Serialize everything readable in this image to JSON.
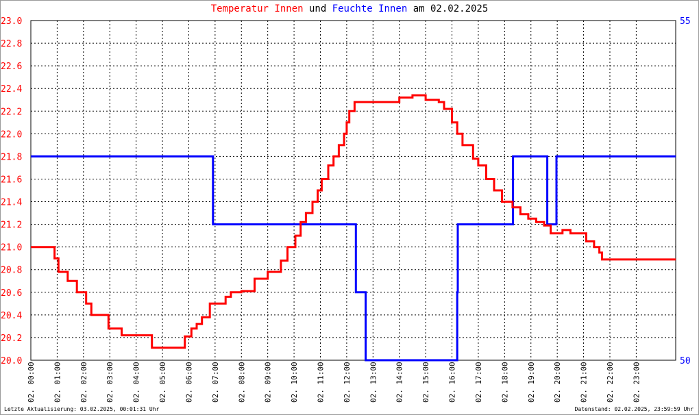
{
  "title": {
    "part1": "Temperatur Innen",
    "part2": " und ",
    "part3": "Feuchte Innen",
    "part4": " am 02.02.2025"
  },
  "footer": {
    "left": "Letzte Aktualisierung: 03.02.2025, 00:01:31 Uhr",
    "right": "Datenstand: 02.02.2025, 23:59:59 Uhr"
  },
  "colors": {
    "temperature": "#ff0000",
    "humidity": "#0000ff",
    "grid": "#000000"
  },
  "chart_data": {
    "type": "line",
    "title": "Temperatur Innen und Feuchte Innen am 02.02.2025",
    "xlim": [
      0,
      24.5
    ],
    "x_tick_labels": [
      "02. 00:00",
      "02. 01:00",
      "02. 02:00",
      "02. 03:00",
      "02. 04:00",
      "02. 05:00",
      "02. 06:00",
      "02. 07:00",
      "02. 08:00",
      "02. 09:00",
      "02. 10:00",
      "02. 11:00",
      "02. 12:00",
      "02. 13:00",
      "02. 14:00",
      "02. 15:00",
      "02. 16:00",
      "02. 17:00",
      "02. 18:00",
      "02. 19:00",
      "02. 20:00",
      "02. 21:00",
      "02. 22:00",
      "02. 23:00"
    ],
    "y_left": {
      "range": [
        20.0,
        23.0
      ],
      "ticks": [
        "20.0",
        "20.2",
        "20.4",
        "20.6",
        "20.8",
        "21.0",
        "21.2",
        "21.4",
        "21.6",
        "21.8",
        "22.0",
        "22.2",
        "22.4",
        "22.6",
        "22.8",
        "23.0"
      ]
    },
    "y_right": {
      "range": [
        50,
        55
      ],
      "ticks": [
        "50",
        "55"
      ]
    },
    "grid": true,
    "series": [
      {
        "name": "Temperatur Innen",
        "axis": "left",
        "x": [
          0.0,
          0.9,
          1.05,
          1.4,
          1.75,
          2.1,
          2.3,
          2.95,
          3.45,
          3.6,
          4.6,
          4.8,
          5.85,
          6.1,
          6.3,
          6.5,
          6.8,
          7.4,
          7.6,
          8.0,
          8.5,
          9.0,
          9.5,
          9.75,
          10.05,
          10.25,
          10.45,
          10.7,
          10.9,
          11.05,
          11.3,
          11.5,
          11.7,
          11.9,
          12.0,
          12.1,
          12.3,
          12.5,
          13.0,
          13.5,
          14.0,
          14.5,
          15.0,
          15.5,
          15.7,
          16.0,
          16.2,
          16.4,
          16.8,
          17.0,
          17.3,
          17.6,
          17.9,
          18.3,
          18.6,
          18.9,
          19.2,
          19.5,
          19.75,
          20.0,
          20.2,
          20.5,
          20.9,
          21.1,
          21.4,
          21.6,
          21.7,
          22.5,
          23.0,
          23.5,
          24.5
        ],
        "y": [
          21.0,
          20.9,
          20.78,
          20.7,
          20.6,
          20.5,
          20.4,
          20.28,
          20.22,
          20.22,
          20.11,
          20.11,
          20.21,
          20.28,
          20.32,
          20.38,
          20.5,
          20.56,
          20.6,
          20.61,
          20.72,
          20.78,
          20.88,
          21.0,
          21.1,
          21.22,
          21.3,
          21.4,
          21.5,
          21.6,
          21.72,
          21.8,
          21.9,
          22.0,
          22.1,
          22.2,
          22.28,
          22.28,
          22.28,
          22.28,
          22.32,
          22.34,
          22.3,
          22.28,
          22.22,
          22.1,
          22.0,
          21.9,
          21.78,
          21.72,
          21.6,
          21.5,
          21.4,
          21.35,
          21.29,
          21.25,
          21.22,
          21.19,
          21.12,
          21.12,
          21.15,
          21.12,
          21.12,
          21.05,
          21.0,
          20.95,
          20.89,
          20.89,
          20.89,
          20.89,
          20.89
        ]
      },
      {
        "name": "Feuchte Innen",
        "axis": "right",
        "x": [
          0.0,
          6.9,
          6.92,
          12.3,
          12.35,
          12.7,
          12.72,
          16.2,
          16.22,
          18.3,
          18.32,
          19.6,
          19.62,
          19.75,
          19.8,
          19.95,
          19.97,
          24.5
        ],
        "y": [
          53,
          53,
          52,
          52,
          51,
          51,
          50,
          51,
          52,
          52,
          53,
          53,
          52,
          52,
          52,
          52,
          53,
          53
        ]
      }
    ]
  }
}
